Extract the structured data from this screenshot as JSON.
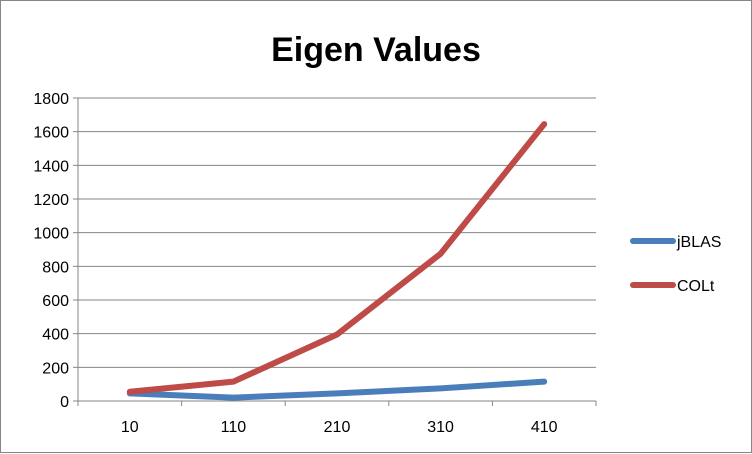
{
  "chart_data": {
    "type": "line",
    "title": "Eigen Values",
    "xlabel": "",
    "ylabel": "",
    "categories": [
      "10",
      "110",
      "210",
      "310",
      "410"
    ],
    "ylim": [
      0,
      1800
    ],
    "yticks": [
      "0",
      "200",
      "400",
      "600",
      "800",
      "1000",
      "1200",
      "1400",
      "1600",
      "1800"
    ],
    "grid": true,
    "legend_position": "right",
    "series": [
      {
        "name": "jBLAS",
        "color": "#4A7EBB",
        "values": [
          45,
          20,
          45,
          75,
          115
        ]
      },
      {
        "name": "COLt",
        "color": "#BE4B48",
        "values": [
          55,
          115,
          395,
          875,
          1645
        ]
      }
    ]
  }
}
